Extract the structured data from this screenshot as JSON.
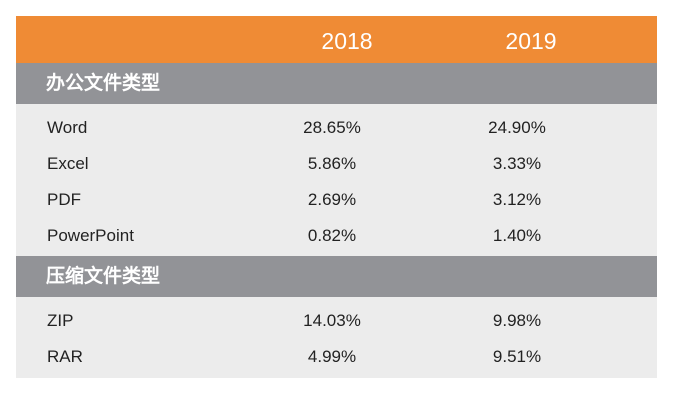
{
  "header": {
    "year_2018": "2018",
    "year_2019": "2019"
  },
  "sections": [
    {
      "title": "办公文件类型",
      "rows": [
        {
          "name": "Word",
          "v2018": "28.65%",
          "v2019": "24.90%"
        },
        {
          "name": "Excel",
          "v2018": "5.86%",
          "v2019": "3.33%"
        },
        {
          "name": "PDF",
          "v2018": "2.69%",
          "v2019": "3.12%"
        },
        {
          "name": "PowerPoint",
          "v2018": "0.82%",
          "v2019": "1.40%"
        }
      ]
    },
    {
      "title": "压缩文件类型",
      "rows": [
        {
          "name": "ZIP",
          "v2018": "14.03%",
          "v2019": "9.98%"
        },
        {
          "name": "RAR",
          "v2018": "4.99%",
          "v2019": "9.51%"
        }
      ]
    }
  ],
  "colors": {
    "header_bg": "#ef8b35",
    "section_bg": "#929397",
    "body_bg": "#ececec"
  }
}
